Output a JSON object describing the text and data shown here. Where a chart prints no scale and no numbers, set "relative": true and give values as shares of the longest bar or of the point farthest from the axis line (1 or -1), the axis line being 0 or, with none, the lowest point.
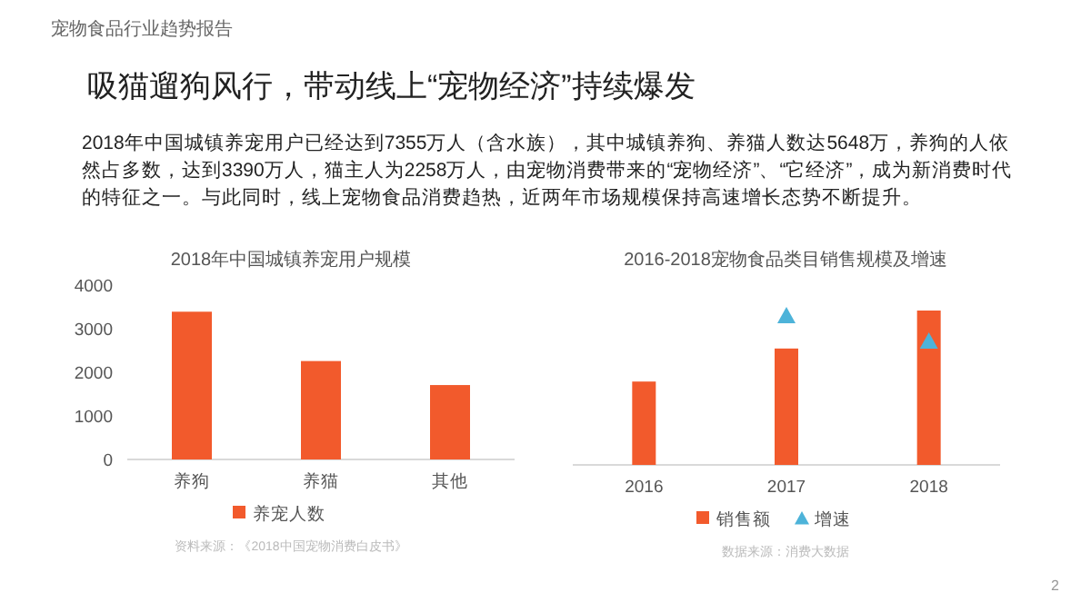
{
  "chart_data": [
    {
      "type": "other",
      "title": "吸猫遛狗风行，带动线上“宠物经济”持续爆发",
      "subtitle": "2018年中国城镇养宠用户已经达到7355万人（含水族），其中城镇养狗、养猫人数达5648万，养狗的人依然占多数，达到3390万人，猫主人为2258万人，由宠物消费带来的“宠物经济”、“它经济”，成为新消费时代的特征之一。与此同时，线上宠物食品消费趋热，近两年市场规模保持高速增长态势不断提升。",
      "annotations": [
        "宠物食品行业趋势报告",
        "2"
      ]
    },
    {
      "type": "bar",
      "title": "2018年中国城镇养宠用户规模",
      "categories": [
        "养狗",
        "养猫",
        "其他"
      ],
      "series": [
        {
          "name": "养宠人数",
          "color": "#f25a2c",
          "values": [
            3390,
            2258,
            1707
          ]
        }
      ],
      "ylim": [
        0,
        4000
      ],
      "yticks": [
        0,
        1000,
        2000,
        3000,
        4000
      ],
      "legend": "bottom",
      "annotations": [
        "资料来源：《2018中国宠物消费白皮书》"
      ]
    },
    {
      "type": "bar",
      "relative": true,
      "title": "2016-2018宠物食品类目销售规模及增速",
      "categories": [
        "2016",
        "2017",
        "2018"
      ],
      "series": [
        {
          "name": "销售额",
          "color": "#f25a2c",
          "values": [
            0.54,
            0.754,
            1
          ]
        },
        {
          "name": "增速",
          "type": "scatter",
          "marker": "triangle",
          "color": "#4db3d9",
          "values": [
            null,
            0.965,
            0.8
          ]
        }
      ],
      "legend": "bottom",
      "tick_labels": "x",
      "annotations": [
        "数据来源：消费大数据"
      ]
    }
  ]
}
